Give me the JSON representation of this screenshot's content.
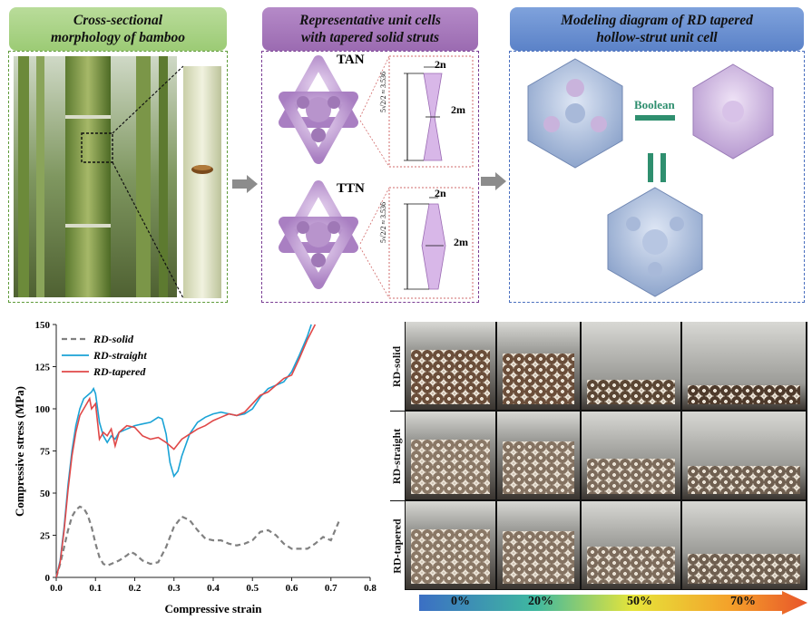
{
  "panels": {
    "bamboo": {
      "title_line1": "Cross-sectional",
      "title_line2": "morphology of bamboo"
    },
    "unit_cells": {
      "title_line1": "Representative unit cells",
      "title_line2": "with tapered solid struts",
      "tan_label": "TAN",
      "ttn_label": "TTN",
      "dim_2n": "2n",
      "dim_2m": "2m",
      "dim_height": "5√2/2 ≈ 3.536"
    },
    "modeling": {
      "title_line1": "Modeling diagram of RD tapered",
      "title_line2": "hollow-strut unit cell",
      "boolean_label": "Boolean"
    }
  },
  "chart_data": {
    "type": "line",
    "xlabel": "Compressive strain",
    "ylabel": "Compressive stress (MPa)",
    "xlim": [
      0,
      0.8
    ],
    "ylim": [
      0,
      150
    ],
    "xticks": [
      "0.0",
      "0.1",
      "0.2",
      "0.3",
      "0.4",
      "0.5",
      "0.6",
      "0.7",
      "0.8"
    ],
    "yticks": [
      "0",
      "25",
      "50",
      "75",
      "100",
      "125",
      "150"
    ],
    "legend_position": "top-left",
    "series": [
      {
        "name": "RD-solid",
        "color": "#808080",
        "style": "dashed",
        "points": [
          [
            0,
            0
          ],
          [
            0.01,
            8
          ],
          [
            0.02,
            18
          ],
          [
            0.03,
            28
          ],
          [
            0.04,
            36
          ],
          [
            0.05,
            40
          ],
          [
            0.06,
            42
          ],
          [
            0.07,
            41
          ],
          [
            0.08,
            37
          ],
          [
            0.09,
            30
          ],
          [
            0.1,
            20
          ],
          [
            0.11,
            12
          ],
          [
            0.12,
            8
          ],
          [
            0.13,
            7
          ],
          [
            0.14,
            8
          ],
          [
            0.15,
            9
          ],
          [
            0.16,
            10
          ],
          [
            0.18,
            13
          ],
          [
            0.19,
            15
          ],
          [
            0.2,
            14
          ],
          [
            0.22,
            10
          ],
          [
            0.24,
            8
          ],
          [
            0.26,
            9
          ],
          [
            0.28,
            18
          ],
          [
            0.3,
            30
          ],
          [
            0.32,
            36
          ],
          [
            0.34,
            34
          ],
          [
            0.36,
            28
          ],
          [
            0.38,
            23
          ],
          [
            0.4,
            22
          ],
          [
            0.42,
            22
          ],
          [
            0.44,
            20
          ],
          [
            0.46,
            19
          ],
          [
            0.48,
            20
          ],
          [
            0.5,
            22
          ],
          [
            0.52,
            27
          ],
          [
            0.54,
            28
          ],
          [
            0.56,
            25
          ],
          [
            0.58,
            20
          ],
          [
            0.6,
            17
          ],
          [
            0.62,
            17
          ],
          [
            0.64,
            17
          ],
          [
            0.66,
            20
          ],
          [
            0.68,
            24
          ],
          [
            0.7,
            22
          ],
          [
            0.72,
            33
          ]
        ]
      },
      {
        "name": "RD-straight",
        "color": "#1aa3d6",
        "style": "solid",
        "points": [
          [
            0,
            0
          ],
          [
            0.01,
            10
          ],
          [
            0.02,
            30
          ],
          [
            0.03,
            55
          ],
          [
            0.04,
            75
          ],
          [
            0.05,
            90
          ],
          [
            0.06,
            100
          ],
          [
            0.07,
            106
          ],
          [
            0.08,
            108
          ],
          [
            0.09,
            110
          ],
          [
            0.095,
            112
          ],
          [
            0.1,
            109
          ],
          [
            0.11,
            92
          ],
          [
            0.12,
            84
          ],
          [
            0.13,
            80
          ],
          [
            0.14,
            84
          ],
          [
            0.15,
            82
          ],
          [
            0.16,
            86
          ],
          [
            0.18,
            88
          ],
          [
            0.2,
            90
          ],
          [
            0.22,
            91
          ],
          [
            0.24,
            92
          ],
          [
            0.26,
            95
          ],
          [
            0.27,
            94
          ],
          [
            0.28,
            85
          ],
          [
            0.29,
            68
          ],
          [
            0.3,
            60
          ],
          [
            0.31,
            63
          ],
          [
            0.32,
            72
          ],
          [
            0.34,
            85
          ],
          [
            0.36,
            92
          ],
          [
            0.38,
            95
          ],
          [
            0.4,
            97
          ],
          [
            0.42,
            98
          ],
          [
            0.44,
            97
          ],
          [
            0.46,
            96
          ],
          [
            0.48,
            97
          ],
          [
            0.5,
            100
          ],
          [
            0.52,
            107
          ],
          [
            0.54,
            112
          ],
          [
            0.56,
            114
          ],
          [
            0.58,
            116
          ],
          [
            0.6,
            122
          ],
          [
            0.62,
            132
          ],
          [
            0.64,
            143
          ],
          [
            0.65,
            150
          ]
        ]
      },
      {
        "name": "RD-tapered",
        "color": "#e04848",
        "style": "solid",
        "points": [
          [
            0,
            0
          ],
          [
            0.01,
            9
          ],
          [
            0.02,
            28
          ],
          [
            0.03,
            52
          ],
          [
            0.04,
            72
          ],
          [
            0.05,
            86
          ],
          [
            0.06,
            96
          ],
          [
            0.07,
            100
          ],
          [
            0.08,
            104
          ],
          [
            0.085,
            106
          ],
          [
            0.09,
            100
          ],
          [
            0.1,
            103
          ],
          [
            0.11,
            82
          ],
          [
            0.12,
            86
          ],
          [
            0.13,
            84
          ],
          [
            0.14,
            88
          ],
          [
            0.15,
            78
          ],
          [
            0.16,
            86
          ],
          [
            0.18,
            90
          ],
          [
            0.2,
            89
          ],
          [
            0.22,
            84
          ],
          [
            0.24,
            82
          ],
          [
            0.26,
            83
          ],
          [
            0.28,
            80
          ],
          [
            0.3,
            76
          ],
          [
            0.32,
            82
          ],
          [
            0.34,
            85
          ],
          [
            0.36,
            88
          ],
          [
            0.38,
            90
          ],
          [
            0.4,
            93
          ],
          [
            0.42,
            95
          ],
          [
            0.44,
            97
          ],
          [
            0.46,
            96
          ],
          [
            0.48,
            98
          ],
          [
            0.5,
            103
          ],
          [
            0.52,
            108
          ],
          [
            0.54,
            110
          ],
          [
            0.56,
            114
          ],
          [
            0.58,
            118
          ],
          [
            0.6,
            120
          ],
          [
            0.62,
            130
          ],
          [
            0.64,
            141
          ],
          [
            0.66,
            150
          ]
        ]
      }
    ]
  },
  "photo_grid": {
    "rows": [
      "RD-solid",
      "RD-straight",
      "RD-tapered"
    ],
    "strain_labels": [
      "0%",
      "20%",
      "50%",
      "70%"
    ]
  },
  "colors": {
    "green_header": "#9ccb75",
    "purple_header": "#9b6bb1",
    "blue_header": "#5b82c8",
    "bamboo_green": "#6f8f43",
    "strut_purple": "#c9a3dc",
    "hollow_blue": "#9fb3d6"
  }
}
